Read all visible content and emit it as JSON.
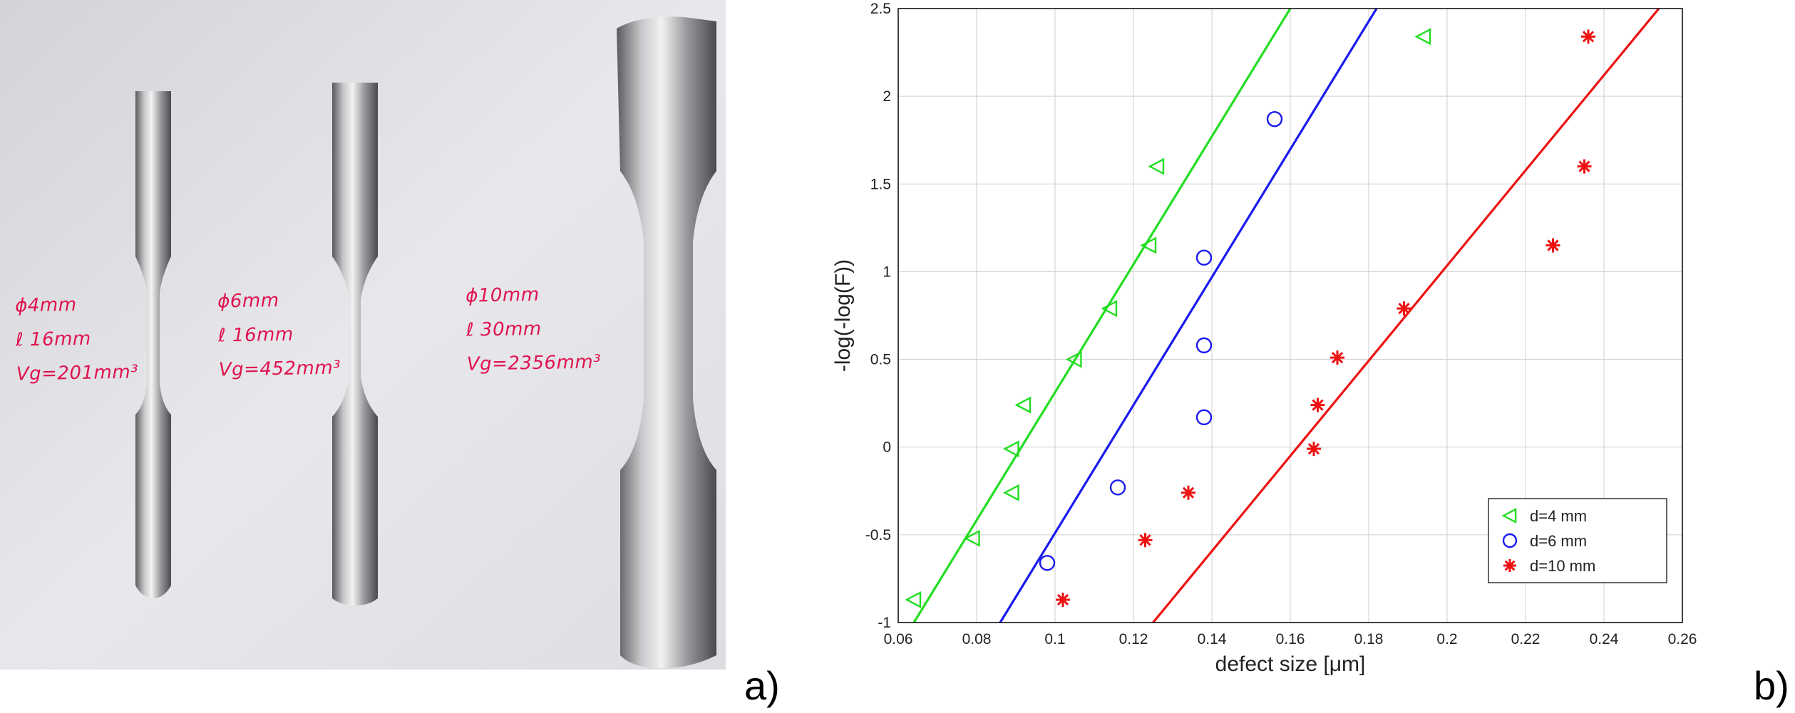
{
  "figure_labels": {
    "left": "a)",
    "right": "b)"
  },
  "photo": {
    "specimens": [
      {
        "lines": [
          "ϕ4mm",
          "ℓ 16mm",
          "Vg=201mm³"
        ]
      },
      {
        "lines": [
          "ϕ6mm",
          "ℓ 16mm",
          "Vg=452mm³"
        ]
      },
      {
        "lines": [
          "ϕ10mm",
          "ℓ 30mm",
          "Vg=2356mm³"
        ]
      }
    ]
  },
  "chart_data": {
    "type": "scatter",
    "title": "",
    "xlabel": "defect size [μm]",
    "ylabel": "-log(-log(F))",
    "xlim": [
      0.06,
      0.26
    ],
    "ylim": [
      -1,
      2.5
    ],
    "xticks": [
      "0.06",
      "0.08",
      "0.1",
      "0.12",
      "0.14",
      "0.16",
      "0.18",
      "0.2",
      "0.22",
      "0.24",
      "0.26"
    ],
    "yticks": [
      "-1",
      "-0.5",
      "0",
      "0.5",
      "1",
      "1.5",
      "2",
      "2.5"
    ],
    "grid": true,
    "legend_position": "bottom-right",
    "series": [
      {
        "name": "d=4 mm",
        "marker": "triangle-left",
        "color": "#22dd22",
        "points": [
          [
            0.064,
            -0.87
          ],
          [
            0.079,
            -0.52
          ],
          [
            0.089,
            -0.26
          ],
          [
            0.089,
            -0.01
          ],
          [
            0.092,
            0.24
          ],
          [
            0.105,
            0.5
          ],
          [
            0.114,
            0.79
          ],
          [
            0.124,
            1.15
          ],
          [
            0.126,
            1.6
          ],
          [
            0.194,
            2.34
          ]
        ],
        "fit": [
          [
            0.064,
            -1.0
          ],
          [
            0.16,
            2.5
          ]
        ]
      },
      {
        "name": "d=6 mm",
        "marker": "circle",
        "color": "#1a1aee",
        "points": [
          [
            0.098,
            -0.66
          ],
          [
            0.116,
            -0.23
          ],
          [
            0.138,
            0.17
          ],
          [
            0.138,
            0.58
          ],
          [
            0.138,
            1.08
          ],
          [
            0.156,
            1.87
          ]
        ],
        "fit": [
          [
            0.086,
            -1.0
          ],
          [
            0.182,
            2.5
          ]
        ]
      },
      {
        "name": "d=10 mm",
        "marker": "asterisk",
        "color": "#ee1111",
        "points": [
          [
            0.102,
            -0.87
          ],
          [
            0.123,
            -0.53
          ],
          [
            0.134,
            -0.26
          ],
          [
            0.166,
            -0.01
          ],
          [
            0.167,
            0.24
          ],
          [
            0.172,
            0.51
          ],
          [
            0.189,
            0.79
          ],
          [
            0.227,
            1.15
          ],
          [
            0.235,
            1.6
          ],
          [
            0.236,
            2.34
          ]
        ],
        "fit": [
          [
            0.125,
            -1.0
          ],
          [
            0.254,
            2.5
          ]
        ]
      }
    ]
  }
}
